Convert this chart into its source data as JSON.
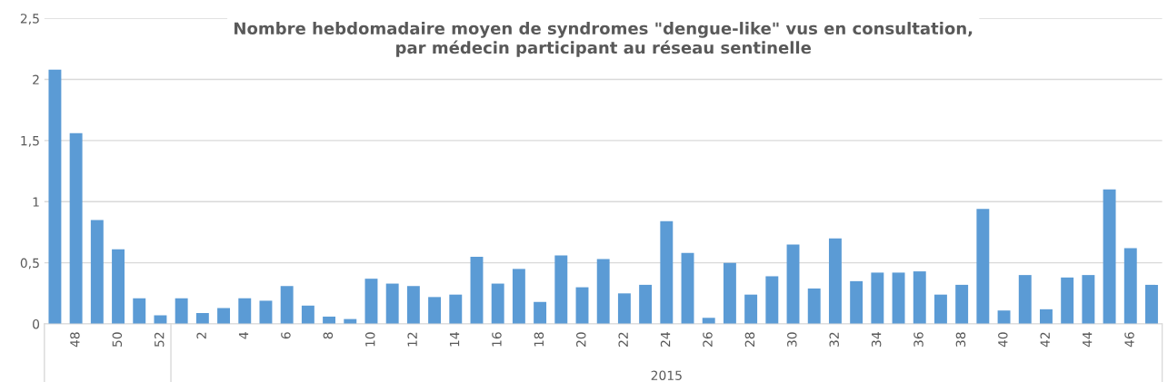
{
  "chart_data": {
    "type": "bar",
    "title": "Nombre hebdomadaire moyen de syndromes \"dengue-like\" vus en consultation,\npar médecin participant au réseau sentinelle",
    "categories": [
      null,
      "48",
      null,
      "50",
      null,
      "52",
      null,
      "2",
      null,
      "4",
      null,
      "6",
      null,
      "8",
      null,
      "10",
      null,
      "12",
      null,
      "14",
      null,
      "16",
      null,
      "18",
      null,
      "20",
      null,
      "22",
      null,
      "24",
      null,
      "26",
      null,
      "28",
      null,
      "30",
      null,
      "32",
      null,
      "34",
      null,
      "36",
      null,
      "38",
      null,
      "40",
      null,
      "42",
      null,
      "44",
      null,
      "46",
      null
    ],
    "values": [
      2.08,
      1.56,
      0.85,
      0.61,
      0.21,
      0.07,
      0.21,
      0.09,
      0.13,
      0.21,
      0.19,
      0.31,
      0.15,
      0.06,
      0.04,
      0.37,
      0.33,
      0.31,
      0.22,
      0.24,
      0.55,
      0.33,
      0.45,
      0.18,
      0.56,
      0.3,
      0.53,
      0.25,
      0.32,
      0.84,
      0.58,
      0.05,
      0.5,
      0.24,
      0.39,
      0.65,
      0.29,
      0.7,
      0.35,
      0.42,
      0.42,
      0.43,
      0.24,
      0.32,
      0.94,
      0.11,
      0.4,
      0.12,
      0.38,
      0.4,
      1.1,
      0.62,
      0.32
    ],
    "color": "#5b9bd5",
    "ylim": [
      0,
      2.5
    ],
    "yticks": [
      0,
      {
        "value": 0.5,
        "label": "0,5"
      },
      1,
      {
        "value": 1.5,
        "label": "1,5"
      },
      2,
      {
        "value": 2.5,
        "label": "2,5"
      }
    ],
    "grid": "y",
    "annotations": [
      "2015"
    ]
  }
}
